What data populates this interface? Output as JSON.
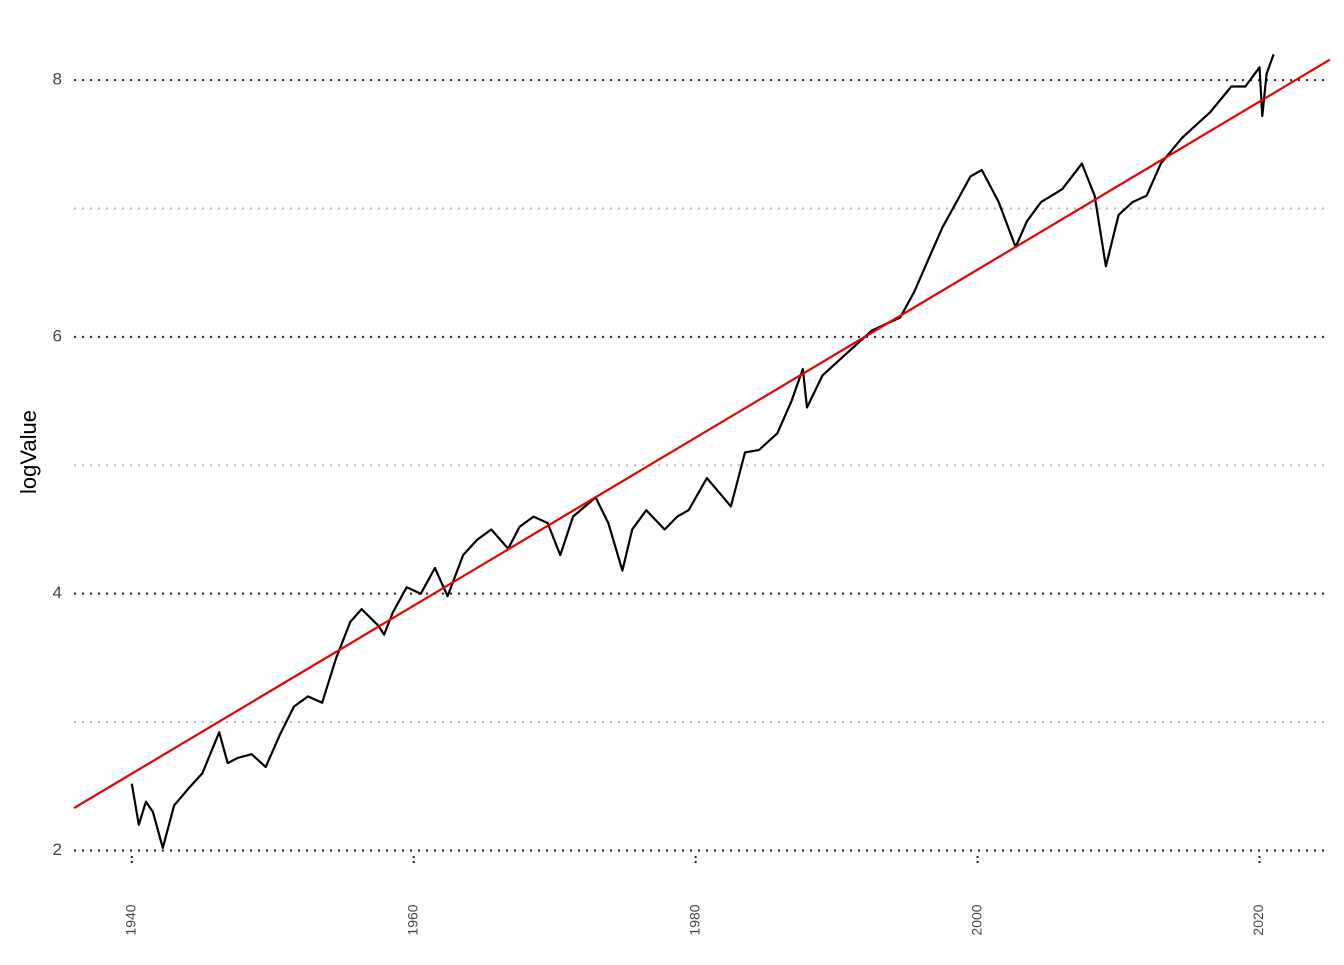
{
  "chart_data": {
    "type": "line",
    "y_label": "logValue",
    "xlim": [
      1935.9,
      2025
    ],
    "xticks": [
      1940,
      1960,
      1980,
      2000,
      2020
    ],
    "ylim": [
      1.91,
      8.25
    ],
    "yticks": [
      2,
      4,
      6,
      8
    ],
    "yminor": [
      3,
      5,
      7
    ],
    "grid": true,
    "series": [
      {
        "color": "#000000",
        "x": [
          1940.0,
          1940.5,
          1941,
          1941.5,
          1942.2,
          1943,
          1944,
          1945,
          1946.2,
          1946.8,
          1947.5,
          1948.5,
          1949.5,
          1950.5,
          1951.5,
          1952.5,
          1953.5,
          1954.5,
          1955.5,
          1956.3,
          1957.5,
          1957.9,
          1958.5,
          1959.5,
          1960.5,
          1961.5,
          1962.4,
          1963.5,
          1964.5,
          1965.5,
          1966.7,
          1967.5,
          1968.5,
          1969.5,
          1970.4,
          1971.3,
          1972.9,
          1973.8,
          1974.8,
          1975.5,
          1976.5,
          1977.8,
          1978.7,
          1979.5,
          1980.8,
          1982.5,
          1983.5,
          1984.5,
          1985.8,
          1986.8,
          1987.6,
          1987.9,
          1989,
          1990.5,
          1991.5,
          1992.5,
          1993.5,
          1994.5,
          1995.5,
          1996.5,
          1997.5,
          1998.5,
          1999.5,
          2000.3,
          2001.5,
          2002.7,
          2003.5,
          2004.5,
          2006,
          2007.4,
          2008.3,
          2009.1,
          2010,
          2011,
          2012,
          2013,
          2014.5,
          2015.5,
          2016.5,
          2018,
          2019,
          2020.0,
          2020.2,
          2020.5,
          2021
        ],
        "values": [
          2.52,
          2.2,
          2.38,
          2.3,
          2.02,
          2.35,
          2.48,
          2.6,
          2.92,
          2.68,
          2.72,
          2.75,
          2.65,
          2.9,
          3.12,
          3.2,
          3.15,
          3.5,
          3.78,
          3.88,
          3.75,
          3.68,
          3.85,
          4.05,
          4.0,
          4.2,
          3.98,
          4.3,
          4.42,
          4.5,
          4.35,
          4.52,
          4.6,
          4.55,
          4.3,
          4.6,
          4.75,
          4.55,
          4.18,
          4.5,
          4.65,
          4.5,
          4.6,
          4.65,
          4.9,
          4.68,
          5.1,
          5.12,
          5.25,
          5.5,
          5.75,
          5.45,
          5.7,
          5.85,
          5.95,
          6.05,
          6.1,
          6.15,
          6.35,
          6.6,
          6.85,
          7.05,
          7.25,
          7.3,
          7.05,
          6.7,
          6.9,
          7.05,
          7.15,
          7.35,
          7.1,
          6.55,
          6.95,
          7.05,
          7.1,
          7.35,
          7.55,
          7.65,
          7.75,
          7.95,
          7.95,
          8.1,
          7.72,
          8.05,
          8.2
        ]
      },
      {
        "color": "#e60000",
        "x": [
          1935.9,
          2025
        ],
        "values": [
          2.33,
          8.16
        ]
      }
    ]
  }
}
